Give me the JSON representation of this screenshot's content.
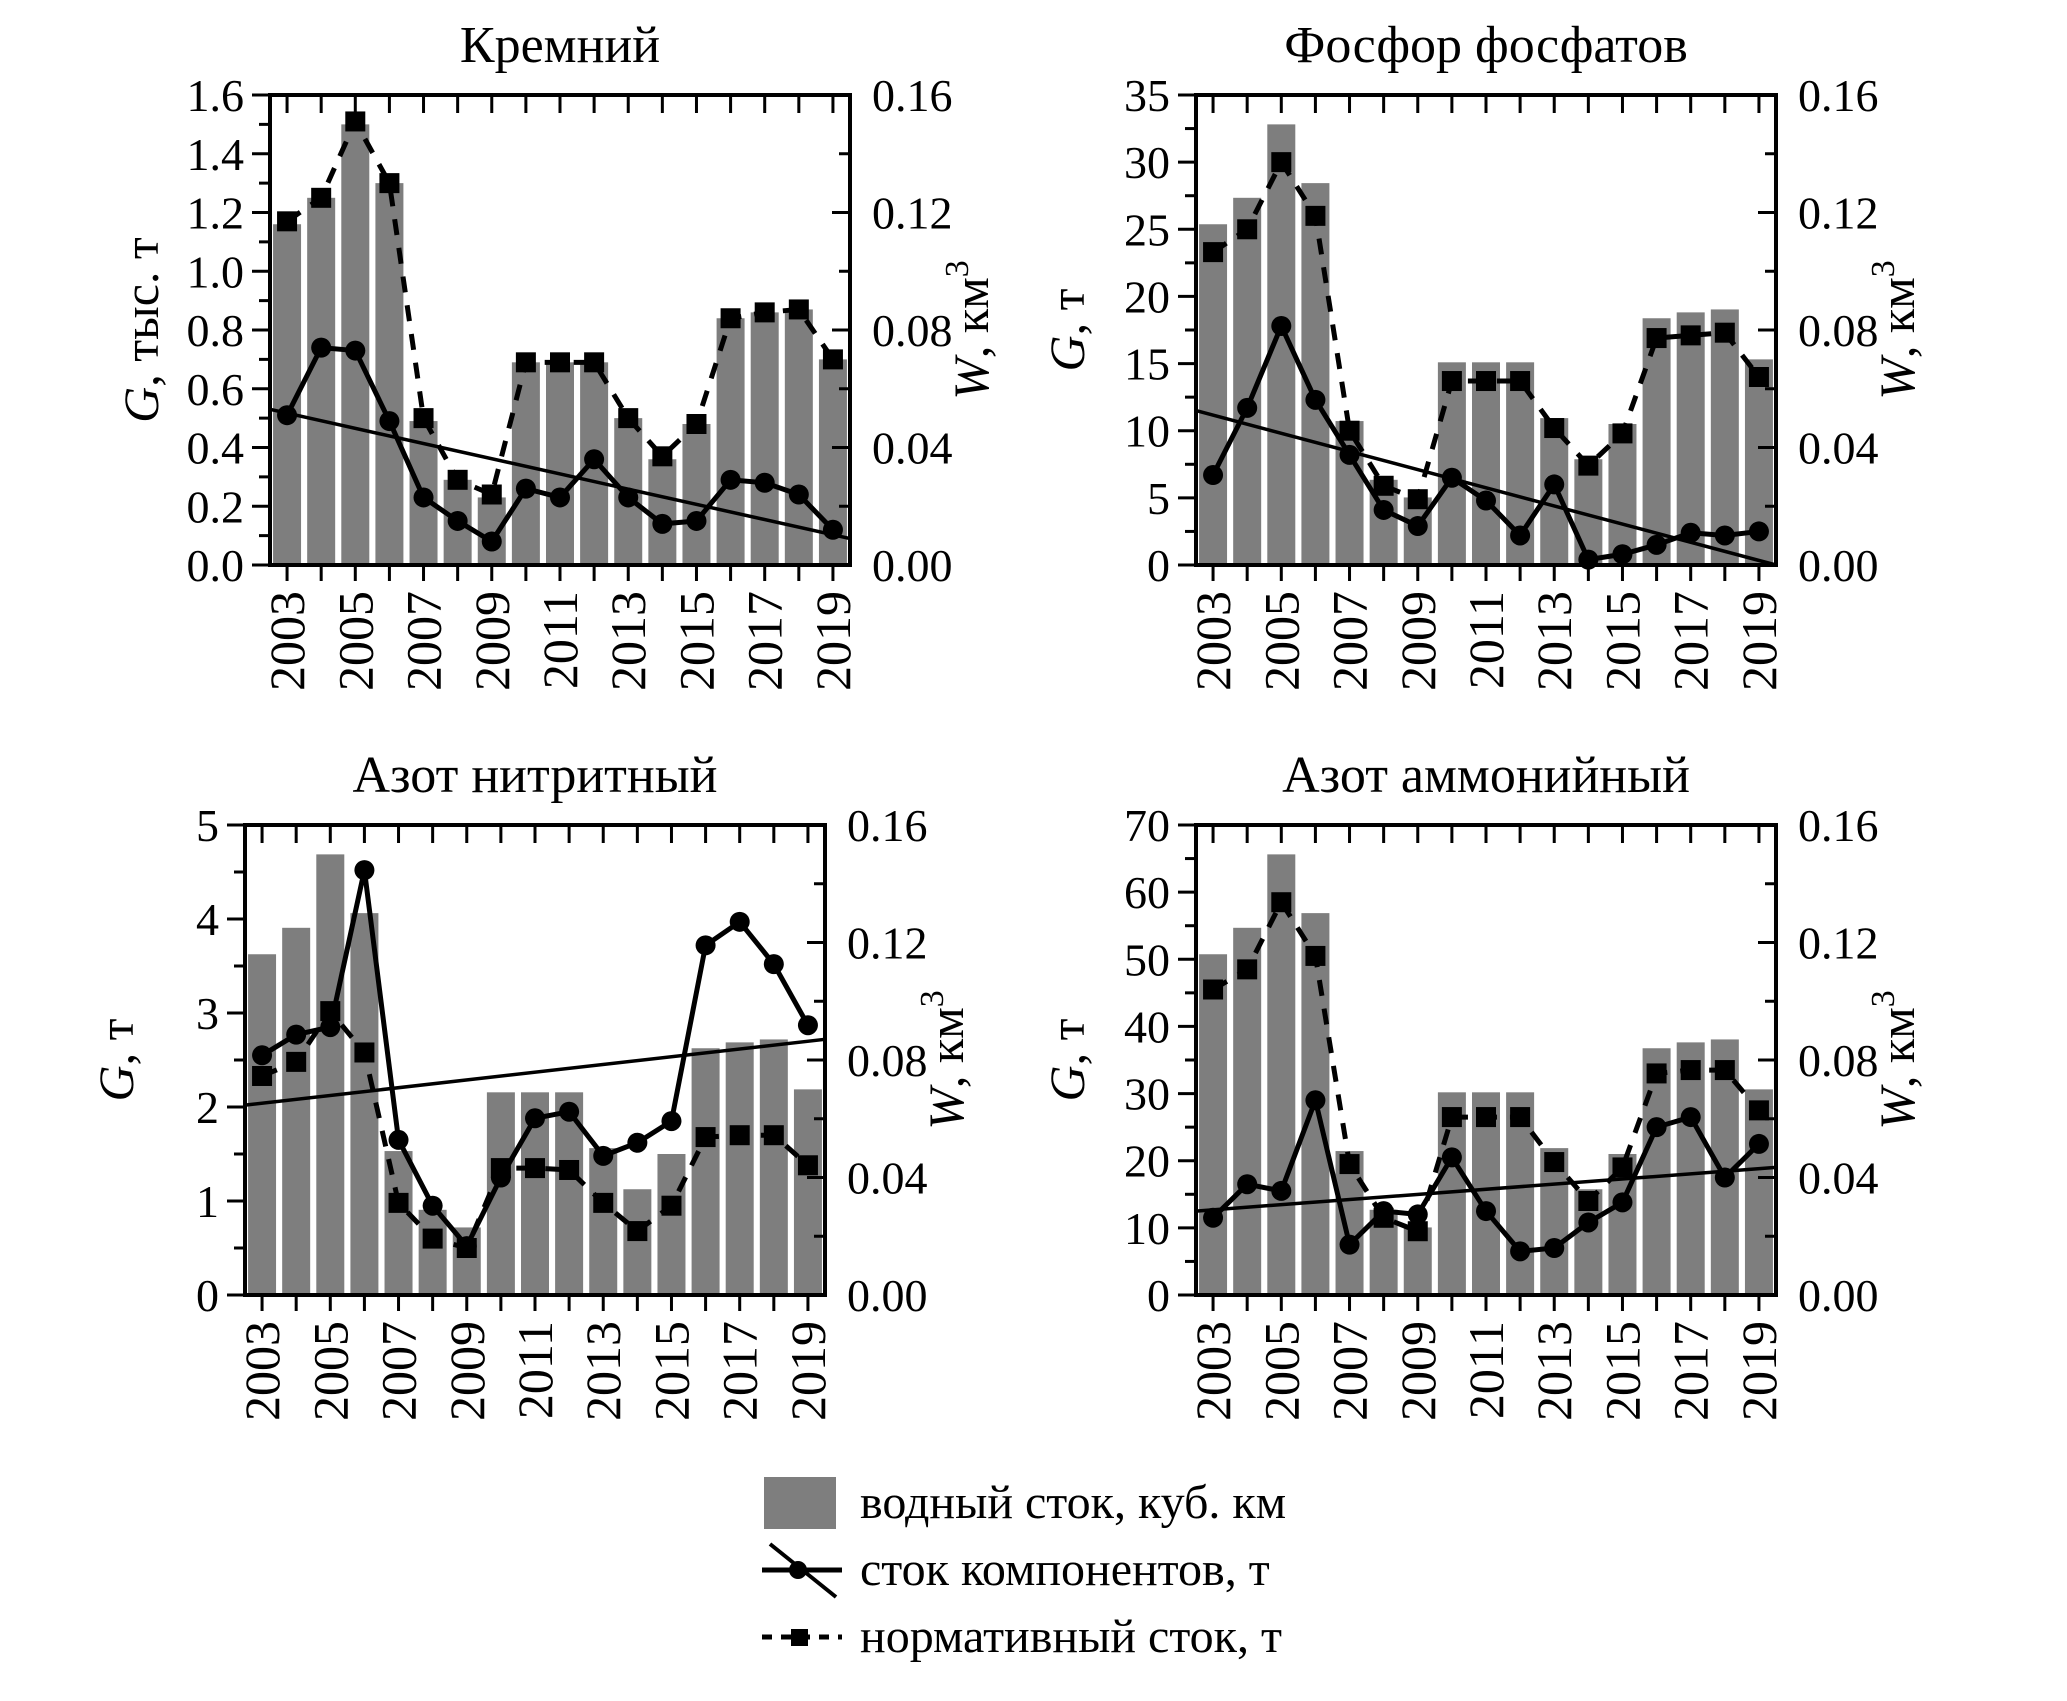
{
  "colors": {
    "bar": "#7e7e7e",
    "line": "#000000",
    "background": "#ffffff"
  },
  "legend": {
    "items": [
      {
        "symbol": "bar-swatch",
        "label": "водный сток, куб. км"
      },
      {
        "symbol": "line-with-circle-and-trend",
        "label": "сток компонентов, т"
      },
      {
        "symbol": "dashed-line-with-square",
        "label": "нормативный сток, т"
      }
    ]
  },
  "chart_data": [
    {
      "type": "bar+line",
      "title": "Кремний",
      "ylabel_left": {
        "italic": "G",
        "rest": ", тыс. т"
      },
      "ylabel_right": {
        "italic": "W",
        "rest": ", км",
        "sup": "3"
      },
      "x": [
        2003,
        2004,
        2005,
        2006,
        2007,
        2008,
        2009,
        2010,
        2011,
        2012,
        2013,
        2014,
        2015,
        2016,
        2017,
        2018,
        2019
      ],
      "x_tick_labels": [
        "2003",
        "2005",
        "2007",
        "2009",
        "2011",
        "2013",
        "2015",
        "2017",
        "2019"
      ],
      "ylim_left": [
        0,
        1.6
      ],
      "left_major_step": 0.2,
      "left_minor_step": 0.1,
      "left_tick_labels": [
        "0.0",
        "0.2",
        "0.4",
        "0.6",
        "0.8",
        "1.0",
        "1.2",
        "1.4",
        "1.6"
      ],
      "ylim_right": [
        0,
        0.16
      ],
      "right_major_step": 0.04,
      "right_minor_step": 0.02,
      "right_tick_labels": [
        "0.00",
        "0.04",
        "0.08",
        "0.12",
        "0.16"
      ],
      "grid": false,
      "legend_position": "below-figure",
      "series": [
        {
          "name": "водный сток, куб. км",
          "type": "bar",
          "axis": "right",
          "values": [
            0.116,
            0.125,
            0.15,
            0.13,
            0.049,
            0.029,
            0.023,
            0.069,
            0.069,
            0.069,
            0.05,
            0.036,
            0.048,
            0.084,
            0.086,
            0.087,
            0.07
          ]
        },
        {
          "name": "сток компонентов, т",
          "type": "line",
          "marker": "circle",
          "axis": "left",
          "values": [
            0.51,
            0.74,
            0.73,
            0.49,
            0.23,
            0.15,
            0.08,
            0.26,
            0.23,
            0.36,
            0.23,
            0.14,
            0.15,
            0.29,
            0.28,
            0.24,
            0.12
          ]
        },
        {
          "name": "нормативный сток, т",
          "type": "dashed-line",
          "marker": "square",
          "axis": "left",
          "values": [
            1.17,
            1.25,
            1.51,
            1.3,
            0.5,
            0.29,
            0.24,
            0.69,
            0.69,
            0.69,
            0.5,
            0.37,
            0.48,
            0.84,
            0.86,
            0.87,
            0.7
          ]
        },
        {
          "name": "линейный тренд стока компонентов",
          "type": "trend-line",
          "axis": "left",
          "endpoints": [
            0.53,
            0.09
          ]
        }
      ]
    },
    {
      "type": "bar+line",
      "title": "Фосфор фосфатов",
      "ylabel_left": {
        "italic": "G",
        "rest": ", т"
      },
      "ylabel_right": {
        "italic": "W",
        "rest": ", км",
        "sup": "3"
      },
      "x": [
        2003,
        2004,
        2005,
        2006,
        2007,
        2008,
        2009,
        2010,
        2011,
        2012,
        2013,
        2014,
        2015,
        2016,
        2017,
        2018,
        2019
      ],
      "x_tick_labels": [
        "2003",
        "2005",
        "2007",
        "2009",
        "2011",
        "2013",
        "2015",
        "2017",
        "2019"
      ],
      "ylim_left": [
        0,
        35
      ],
      "left_major_step": 5,
      "left_minor_step": 2.5,
      "left_tick_labels": [
        "0",
        "5",
        "10",
        "15",
        "20",
        "25",
        "30",
        "35"
      ],
      "ylim_right": [
        0,
        0.16
      ],
      "right_major_step": 0.04,
      "right_minor_step": 0.02,
      "right_tick_labels": [
        "0.00",
        "0.04",
        "0.08",
        "0.12",
        "0.16"
      ],
      "grid": false,
      "legend_position": "below-figure",
      "series": [
        {
          "name": "водный сток, куб. км",
          "type": "bar",
          "axis": "right",
          "values": [
            0.116,
            0.125,
            0.15,
            0.13,
            0.049,
            0.029,
            0.023,
            0.069,
            0.069,
            0.069,
            0.05,
            0.036,
            0.048,
            0.084,
            0.086,
            0.087,
            0.07
          ]
        },
        {
          "name": "сток компонентов, т",
          "type": "line",
          "marker": "circle",
          "axis": "left",
          "values": [
            6.7,
            11.7,
            17.8,
            12.3,
            8.2,
            4.1,
            2.9,
            6.5,
            4.8,
            2.2,
            6.0,
            0.4,
            0.8,
            1.5,
            2.4,
            2.2,
            2.5
          ]
        },
        {
          "name": "нормативный сток, т",
          "type": "dashed-line",
          "marker": "square",
          "axis": "left",
          "values": [
            23.3,
            25.0,
            30.0,
            26.0,
            10.0,
            5.9,
            4.9,
            13.7,
            13.7,
            13.7,
            10.2,
            7.4,
            9.8,
            16.9,
            17.1,
            17.3,
            14.0
          ]
        },
        {
          "name": "линейный тренд стока компонентов",
          "type": "trend-line",
          "axis": "left",
          "endpoints": [
            11.5,
            0.0
          ]
        }
      ]
    },
    {
      "type": "bar+line",
      "title": "Азот нитритный",
      "ylabel_left": {
        "italic": "G",
        "rest": ", т"
      },
      "ylabel_right": {
        "italic": "W",
        "rest": ", км",
        "sup": "3"
      },
      "x": [
        2003,
        2004,
        2005,
        2006,
        2007,
        2008,
        2009,
        2010,
        2011,
        2012,
        2013,
        2014,
        2015,
        2016,
        2017,
        2018,
        2019
      ],
      "x_tick_labels": [
        "2003",
        "2005",
        "2007",
        "2009",
        "2011",
        "2013",
        "2015",
        "2017",
        "2019"
      ],
      "ylim_left": [
        0,
        5
      ],
      "left_major_step": 1,
      "left_minor_step": 0.5,
      "left_tick_labels": [
        "0",
        "1",
        "2",
        "3",
        "4",
        "5"
      ],
      "ylim_right": [
        0,
        0.16
      ],
      "right_major_step": 0.04,
      "right_minor_step": 0.02,
      "right_tick_labels": [
        "0.00",
        "0.04",
        "0.08",
        "0.12",
        "0.16"
      ],
      "grid": false,
      "legend_position": "below-figure",
      "series": [
        {
          "name": "водный сток, куб. км",
          "type": "bar",
          "axis": "right",
          "values": [
            0.116,
            0.125,
            0.15,
            0.13,
            0.049,
            0.029,
            0.023,
            0.069,
            0.069,
            0.069,
            0.05,
            0.036,
            0.048,
            0.084,
            0.086,
            0.087,
            0.07
          ]
        },
        {
          "name": "сток компонентов, т",
          "type": "line",
          "marker": "circle",
          "axis": "left",
          "values": [
            2.55,
            2.77,
            2.85,
            4.52,
            1.65,
            0.95,
            0.52,
            1.25,
            1.88,
            1.95,
            1.48,
            1.62,
            1.85,
            3.72,
            3.97,
            3.52,
            2.87
          ]
        },
        {
          "name": "нормативный сток, т",
          "type": "dashed-line",
          "marker": "square",
          "axis": "left",
          "values": [
            2.33,
            2.48,
            3.02,
            2.58,
            0.98,
            0.6,
            0.5,
            1.35,
            1.35,
            1.33,
            0.98,
            0.68,
            0.95,
            1.68,
            1.7,
            1.7,
            1.38
          ]
        },
        {
          "name": "линейный тренд стока компонентов",
          "type": "trend-line",
          "axis": "left",
          "endpoints": [
            2.02,
            2.72
          ]
        }
      ]
    },
    {
      "type": "bar+line",
      "title": "Азот аммонийный",
      "ylabel_left": {
        "italic": "G",
        "rest": ", т"
      },
      "ylabel_right": {
        "italic": "W",
        "rest": ", км",
        "sup": "3"
      },
      "x": [
        2003,
        2004,
        2005,
        2006,
        2007,
        2008,
        2009,
        2010,
        2011,
        2012,
        2013,
        2014,
        2015,
        2016,
        2017,
        2018,
        2019
      ],
      "x_tick_labels": [
        "2003",
        "2005",
        "2007",
        "2009",
        "2011",
        "2013",
        "2015",
        "2017",
        "2019"
      ],
      "ylim_left": [
        0,
        70
      ],
      "left_major_step": 10,
      "left_minor_step": 5,
      "left_tick_labels": [
        "0",
        "10",
        "20",
        "30",
        "40",
        "50",
        "60",
        "70"
      ],
      "ylim_right": [
        0,
        0.16
      ],
      "right_major_step": 0.04,
      "right_minor_step": 0.02,
      "right_tick_labels": [
        "0.00",
        "0.04",
        "0.08",
        "0.12",
        "0.16"
      ],
      "grid": false,
      "legend_position": "below-figure",
      "series": [
        {
          "name": "водный сток, куб. км",
          "type": "bar",
          "axis": "right",
          "values": [
            0.116,
            0.125,
            0.15,
            0.13,
            0.049,
            0.029,
            0.023,
            0.069,
            0.069,
            0.069,
            0.05,
            0.036,
            0.048,
            0.084,
            0.086,
            0.087,
            0.07
          ]
        },
        {
          "name": "сток компонентов, т",
          "type": "line",
          "marker": "circle",
          "axis": "left",
          "values": [
            11.5,
            16.5,
            15.5,
            29.0,
            7.5,
            12.5,
            12.0,
            20.5,
            12.5,
            6.5,
            7.0,
            10.8,
            13.8,
            25.0,
            26.5,
            17.5,
            22.5
          ]
        },
        {
          "name": "нормативный сток, т",
          "type": "dashed-line",
          "marker": "square",
          "axis": "left",
          "values": [
            45.5,
            48.5,
            58.5,
            50.5,
            19.5,
            11.5,
            9.5,
            26.5,
            26.5,
            26.5,
            19.8,
            14.0,
            19.0,
            33.0,
            33.5,
            33.5,
            27.5
          ]
        },
        {
          "name": "линейный тренд стока компонентов",
          "type": "trend-line",
          "axis": "left",
          "endpoints": [
            12.5,
            19.0
          ]
        }
      ]
    }
  ]
}
